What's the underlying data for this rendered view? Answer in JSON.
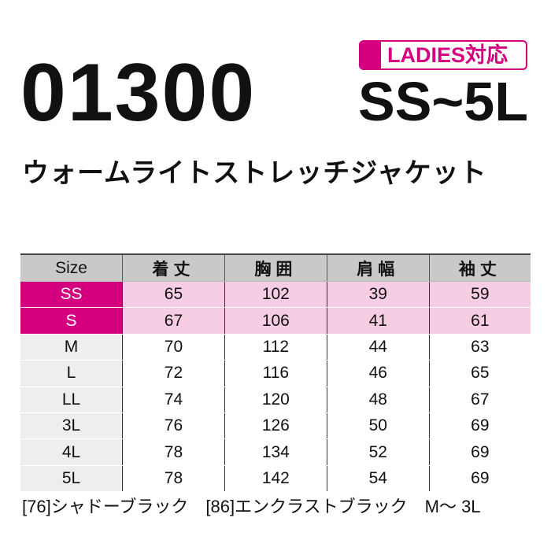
{
  "product_code": "01300",
  "badge": "LADIES対応",
  "size_range": "SS~5L",
  "product_name": "ウォームライトストレッチジャケット",
  "colors": {
    "accent": "#d5007f",
    "highlight": "#f7cde4",
    "header": "#c9c9c9"
  },
  "table": {
    "headers": [
      "Size",
      "着丈",
      "胸囲",
      "肩幅",
      "袖丈"
    ],
    "rows": [
      [
        "SS",
        "65",
        "102",
        "39",
        "59"
      ],
      [
        "S",
        "67",
        "106",
        "41",
        "61"
      ],
      [
        "M",
        "70",
        "112",
        "44",
        "63"
      ],
      [
        "L",
        "72",
        "116",
        "46",
        "65"
      ],
      [
        "LL",
        "74",
        "120",
        "48",
        "67"
      ],
      [
        "3L",
        "76",
        "126",
        "50",
        "69"
      ],
      [
        "4L",
        "78",
        "134",
        "52",
        "69"
      ],
      [
        "5L",
        "78",
        "142",
        "54",
        "69"
      ]
    ]
  },
  "note": "[76]シャドーブラック　[86]エンクラストブラック　M～ 3L"
}
